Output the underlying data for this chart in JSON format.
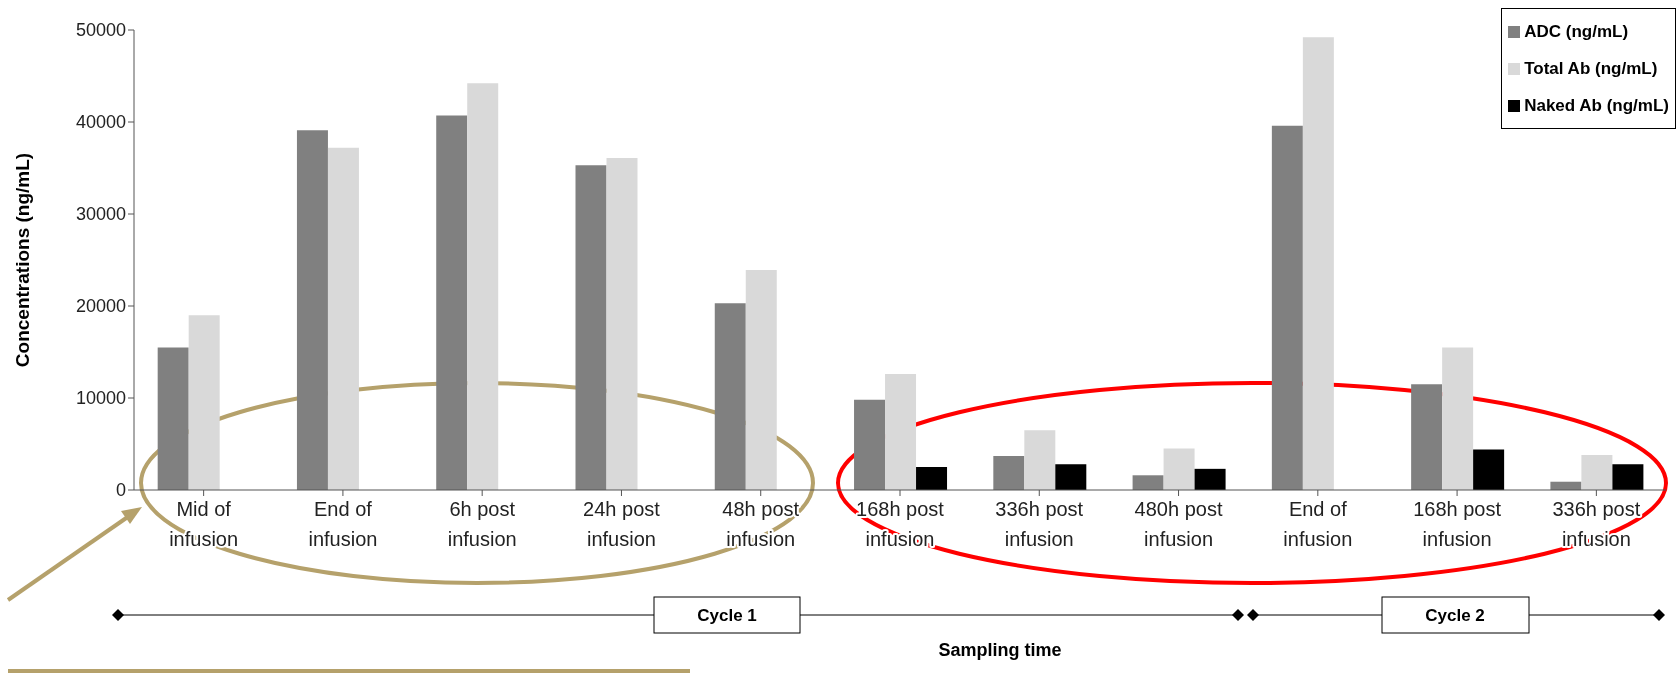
{
  "chart_data": {
    "type": "bar",
    "xlabel": "Sampling time",
    "ylabel": "Concentrations (ng/mL)",
    "categories": [
      "Mid of infusion",
      "End of infusion",
      "6h post infusion",
      "24h post infusion",
      "48h post infusion",
      "168h post infusion",
      "336h post infusion",
      "480h post infusion",
      "End of infusion",
      "168h post infusion",
      "336h post infusion"
    ],
    "series": [
      {
        "name": "ADC (ng/mL)",
        "color": "#808080",
        "values": [
          15500,
          39100,
          40700,
          35300,
          20300,
          9800,
          3700,
          1600,
          39600,
          11500,
          900
        ]
      },
      {
        "name": "Total Ab (ng/mL)",
        "color": "#d9d9d9",
        "values": [
          19000,
          37200,
          44200,
          36100,
          23900,
          12600,
          6500,
          4500,
          49200,
          15500,
          3800
        ]
      },
      {
        "name": "Naked Ab (ng/mL)",
        "color": "#000000",
        "values": [
          null,
          null,
          null,
          null,
          null,
          2500,
          2800,
          2300,
          null,
          4400,
          2800
        ]
      }
    ],
    "ylim": [
      0,
      50000
    ],
    "yticks": [
      0,
      10000,
      20000,
      30000,
      40000,
      50000
    ],
    "grid": false,
    "legend": "top right",
    "annotations": [
      "Cycle 1",
      "Cycle 2"
    ]
  }
}
